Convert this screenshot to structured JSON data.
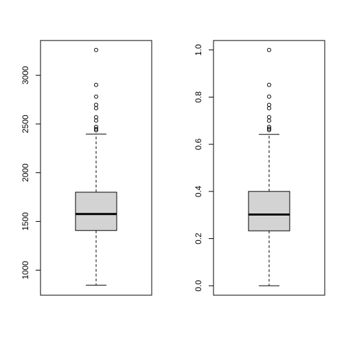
{
  "chart_data": [
    {
      "type": "box",
      "ylim": [
        743,
        3357
      ],
      "yticks": [
        1000,
        1500,
        2000,
        2500,
        3000
      ],
      "color": "#d3d3d3",
      "whisker_low": 846,
      "q1": 1407,
      "median": 1576,
      "q3": 1800,
      "whisker_high": 2397,
      "outliers": [
        3260,
        2902,
        2781,
        2697,
        2662,
        2570,
        2535,
        2471,
        2450,
        2436
      ]
    },
    {
      "type": "box",
      "ylim": [
        -0.04,
        1.04
      ],
      "yticks": [
        {
          "value": 0,
          "label": "0.0"
        },
        0.2,
        0.4,
        0.6,
        0.8,
        {
          "value": 1,
          "label": "1.0"
        }
      ],
      "color": "#d3d3d3",
      "whisker_low": 0,
      "q1": 0.233,
      "median": 0.302,
      "q3": 0.4,
      "whisker_high": 0.642,
      "outliers": [
        1.0,
        0.852,
        0.802,
        0.767,
        0.753,
        0.715,
        0.7,
        0.674,
        0.666,
        0.66
      ]
    }
  ]
}
